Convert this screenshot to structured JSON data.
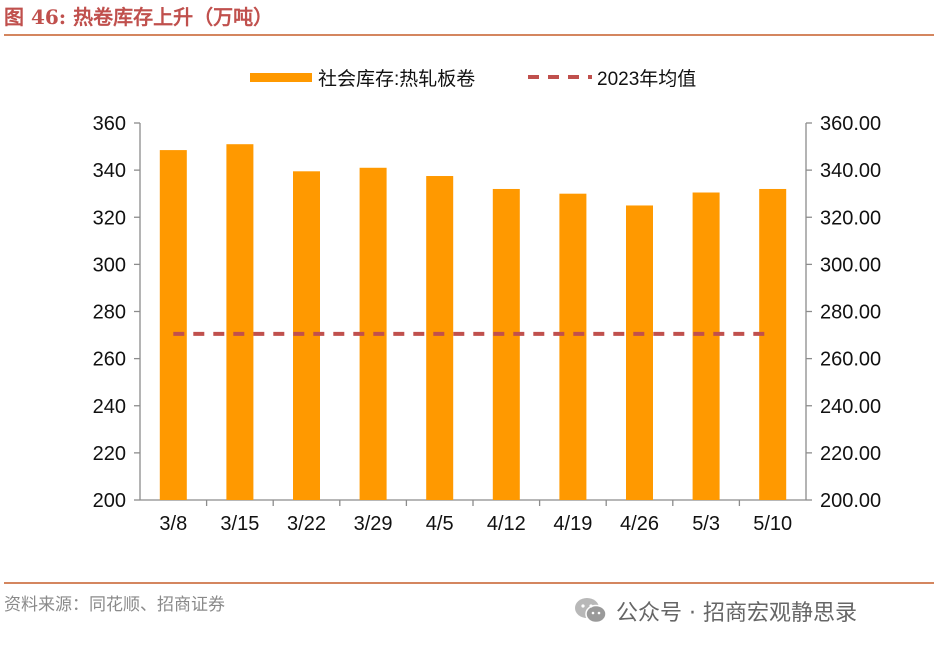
{
  "header": {
    "figure_title": "图 46:  热卷库存上升（万吨）"
  },
  "footer": {
    "source": "资料来源：同花顺、招商证券",
    "watermark": "公众号 · 招商宏观静思录",
    "watermark_icon": "wechat-icon"
  },
  "colors": {
    "bar": "#ff9900",
    "avg_line": "#c0504d",
    "title": "#c0504d",
    "rule": "#d4865f"
  },
  "chart_data": {
    "type": "bar",
    "title": "热卷库存上升（万吨）",
    "categories": [
      "3/8",
      "3/15",
      "3/22",
      "3/29",
      "4/5",
      "4/12",
      "4/19",
      "4/26",
      "5/3",
      "5/10"
    ],
    "series": [
      {
        "name": "社会库存:热轧板卷",
        "type": "bar",
        "axis": "left",
        "values": [
          348.5,
          351,
          339.5,
          341,
          337.5,
          332,
          330,
          325,
          330.5,
          332
        ]
      },
      {
        "name": "2023年均值",
        "type": "line",
        "style": "dashed",
        "axis": "right",
        "values": [
          270.5,
          270.5,
          270.5,
          270.5,
          270.5,
          270.5,
          270.5,
          270.5,
          270.5,
          270.5
        ]
      }
    ],
    "ylim": [
      200,
      360
    ],
    "y_ticks": [
      "200",
      "220",
      "240",
      "260",
      "280",
      "300",
      "320",
      "340",
      "360"
    ],
    "y2lim": [
      200,
      360
    ],
    "y2_ticks": [
      "200.00",
      "220.00",
      "240.00",
      "260.00",
      "280.00",
      "300.00",
      "320.00",
      "340.00",
      "360.00"
    ],
    "xlabel": "",
    "ylabel": "",
    "legend_position": "top-center",
    "grid": false
  }
}
